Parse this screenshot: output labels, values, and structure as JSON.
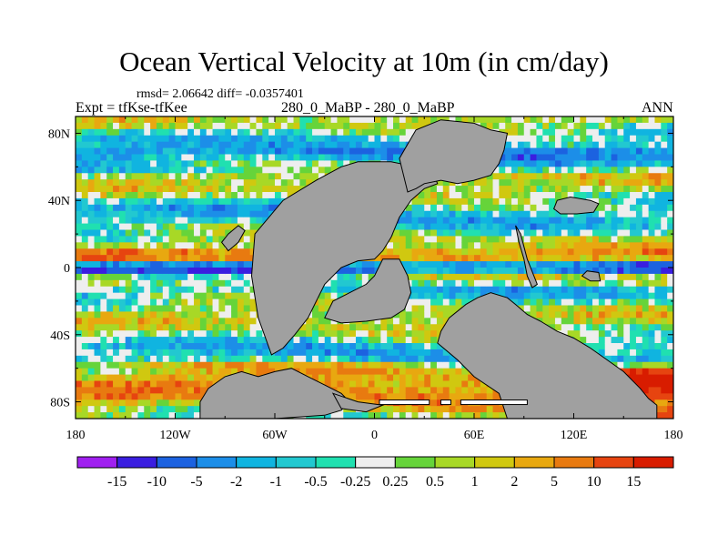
{
  "chart_data": {
    "type": "heatmap",
    "title": "Ocean Vertical Velocity at 10m (in cm/day)",
    "stats_label": "rmsd= 2.06642  diff= -0.0357401",
    "rmsd": 2.06642,
    "diff": -0.0357401,
    "left_label": "Expt = tfKse-tfKee",
    "center_label": "280_0_MaBP - 280_0_MaBP",
    "right_label": "ANN",
    "xlim": [
      -180,
      180
    ],
    "ylim": [
      -90,
      90
    ],
    "x_ticks": [
      {
        "value": -180,
        "label": "180"
      },
      {
        "value": -120,
        "label": "120W"
      },
      {
        "value": -60,
        "label": "60W"
      },
      {
        "value": 0,
        "label": "0"
      },
      {
        "value": 60,
        "label": "60E"
      },
      {
        "value": 120,
        "label": "120E"
      },
      {
        "value": 180,
        "label": "180"
      }
    ],
    "y_ticks": [
      {
        "value": 80,
        "label": "80N"
      },
      {
        "value": 40,
        "label": "40N"
      },
      {
        "value": 0,
        "label": "0"
      },
      {
        "value": -40,
        "label": "40S"
      },
      {
        "value": -80,
        "label": "80S"
      }
    ],
    "colorbar": {
      "levels": [
        "-15",
        "-10",
        "-5",
        "-2",
        "-1",
        "-0.5",
        "-0.25",
        "0.25",
        "0.5",
        "1",
        "2",
        "5",
        "10",
        "15"
      ],
      "colors": [
        "#a020f0",
        "#3a1ee0",
        "#1c62e0",
        "#1c8ee8",
        "#10b4e0",
        "#22c8d0",
        "#20e0b0",
        "#eeeeee",
        "#66d43a",
        "#a8d826",
        "#d0c810",
        "#e8a810",
        "#e87a10",
        "#e64410",
        "#d81c00"
      ]
    },
    "land_color": "#a0a0a0",
    "land_polygons": [
      [
        [
          -105,
          -90
        ],
        [
          -105,
          -80
        ],
        [
          -100,
          -72
        ],
        [
          -90,
          -65
        ],
        [
          -80,
          -62
        ],
        [
          -70,
          -65
        ],
        [
          -60,
          -62
        ],
        [
          -50,
          -60
        ],
        [
          -40,
          -65
        ],
        [
          -30,
          -70
        ],
        [
          -20,
          -75
        ],
        [
          -15,
          -80
        ],
        [
          -20,
          -85
        ],
        [
          -30,
          -88
        ],
        [
          -60,
          -90
        ]
      ],
      [
        [
          -62,
          -52
        ],
        [
          -70,
          -30
        ],
        [
          -74,
          -5
        ],
        [
          -72,
          20
        ],
        [
          -55,
          40
        ],
        [
          -35,
          52
        ],
        [
          -20,
          60
        ],
        [
          -10,
          63
        ],
        [
          10,
          63
        ],
        [
          25,
          60
        ],
        [
          35,
          57
        ],
        [
          38,
          50
        ],
        [
          30,
          47
        ],
        [
          22,
          40
        ],
        [
          15,
          30
        ],
        [
          10,
          18
        ],
        [
          5,
          10
        ],
        [
          0,
          5
        ],
        [
          -10,
          4
        ],
        [
          -20,
          0
        ],
        [
          -30,
          -10
        ],
        [
          -35,
          -20
        ],
        [
          -40,
          -30
        ],
        [
          -48,
          -40
        ],
        [
          -55,
          -48
        ]
      ],
      [
        [
          -30,
          -30
        ],
        [
          -25,
          -20
        ],
        [
          -15,
          -15
        ],
        [
          -5,
          -10
        ],
        [
          0,
          -5
        ],
        [
          5,
          5
        ],
        [
          15,
          5
        ],
        [
          20,
          -5
        ],
        [
          22,
          -15
        ],
        [
          18,
          -25
        ],
        [
          10,
          -30
        ],
        [
          -5,
          -32
        ],
        [
          -20,
          -33
        ]
      ],
      [
        [
          20,
          45
        ],
        [
          15,
          65
        ],
        [
          25,
          82
        ],
        [
          40,
          88
        ],
        [
          60,
          86
        ],
        [
          70,
          82
        ],
        [
          80,
          80
        ],
        [
          78,
          70
        ],
        [
          75,
          62
        ],
        [
          70,
          55
        ],
        [
          60,
          52
        ],
        [
          50,
          50
        ],
        [
          40,
          52
        ],
        [
          30,
          50
        ],
        [
          25,
          47
        ]
      ],
      [
        [
          38,
          -45
        ],
        [
          40,
          -38
        ],
        [
          45,
          -30
        ],
        [
          55,
          -22
        ],
        [
          62,
          -18
        ],
        [
          70,
          -15
        ],
        [
          80,
          -18
        ],
        [
          85,
          -22
        ],
        [
          92,
          -28
        ],
        [
          100,
          -32
        ],
        [
          110,
          -38
        ],
        [
          120,
          -42
        ],
        [
          130,
          -48
        ],
        [
          140,
          -55
        ],
        [
          150,
          -62
        ],
        [
          160,
          -72
        ],
        [
          165,
          -78
        ],
        [
          170,
          -82
        ],
        [
          170,
          -90
        ],
        [
          80,
          -90
        ],
        [
          75,
          -75
        ],
        [
          60,
          -65
        ],
        [
          50,
          -55
        ]
      ],
      [
        [
          108,
          35
        ],
        [
          110,
          40
        ],
        [
          118,
          42
        ],
        [
          130,
          40
        ],
        [
          135,
          38
        ],
        [
          132,
          33
        ],
        [
          122,
          32
        ],
        [
          112,
          32
        ]
      ],
      [
        [
          85,
          25
        ],
        [
          88,
          20
        ],
        [
          92,
          5
        ],
        [
          96,
          -5
        ],
        [
          98,
          -10
        ],
        [
          95,
          -12
        ],
        [
          92,
          -5
        ],
        [
          90,
          5
        ],
        [
          87,
          15
        ]
      ],
      [
        [
          -88,
          10
        ],
        [
          -82,
          15
        ],
        [
          -78,
          22
        ],
        [
          -82,
          25
        ],
        [
          -88,
          20
        ],
        [
          -92,
          15
        ]
      ],
      [
        [
          125,
          -5
        ],
        [
          130,
          -8
        ],
        [
          136,
          -8
        ],
        [
          135,
          -3
        ],
        [
          128,
          -2
        ]
      ],
      [
        [
          -25,
          -75
        ],
        [
          -10,
          -80
        ],
        [
          5,
          -82
        ],
        [
          -5,
          -86
        ],
        [
          -20,
          -84
        ]
      ]
    ],
    "ice_bars": [
      [
        3,
        33
      ],
      [
        40,
        46
      ],
      [
        52,
        92
      ]
    ]
  }
}
